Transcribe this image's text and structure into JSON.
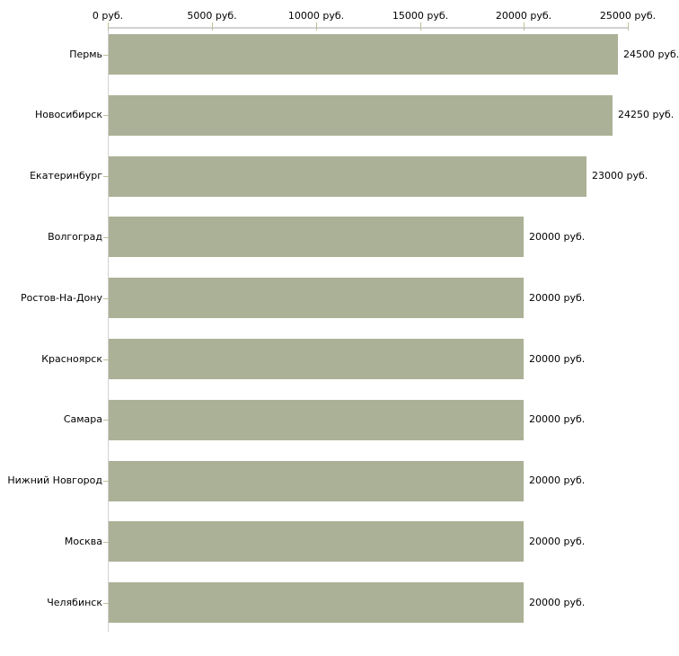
{
  "page": {
    "background": "#ffffff"
  },
  "chart_data": {
    "type": "bar",
    "orientation": "horizontal",
    "title": "",
    "unit": "руб.",
    "categories": [
      "Пермь",
      "Новосибирск",
      "Екатеринбург",
      "Волгоград",
      "Ростов-На-Дону",
      "Красноярск",
      "Самара",
      "Нижний Новгород",
      "Москва",
      "Челябинск"
    ],
    "values": [
      24500,
      24250,
      23000,
      20000,
      20000,
      20000,
      20000,
      20000,
      20000,
      20000
    ],
    "value_labels": [
      "24500 руб.",
      "24250 руб.",
      "23000 руб.",
      "20000 руб.",
      "20000 руб.",
      "20000 руб.",
      "20000 руб.",
      "20000 руб.",
      "20000 руб.",
      "20000 руб."
    ],
    "x_ticks": [
      {
        "value": 0,
        "label": "0 руб."
      },
      {
        "value": 5000,
        "label": "5000 руб."
      },
      {
        "value": 10000,
        "label": "10000 руб."
      },
      {
        "value": 15000,
        "label": "15000 руб."
      },
      {
        "value": 20000,
        "label": "20000 руб."
      },
      {
        "value": 25000,
        "label": "25000 руб."
      }
    ],
    "xlim": [
      0,
      25000
    ],
    "xlabel": "",
    "ylabel": "",
    "axis_position": "top",
    "grid": false,
    "legend": false,
    "colors": {
      "bar": "#abb196",
      "tick_mark": "#bfbf99",
      "axis_line": "#d2d2d2",
      "text": "#000000",
      "background": "#ffffff"
    }
  }
}
